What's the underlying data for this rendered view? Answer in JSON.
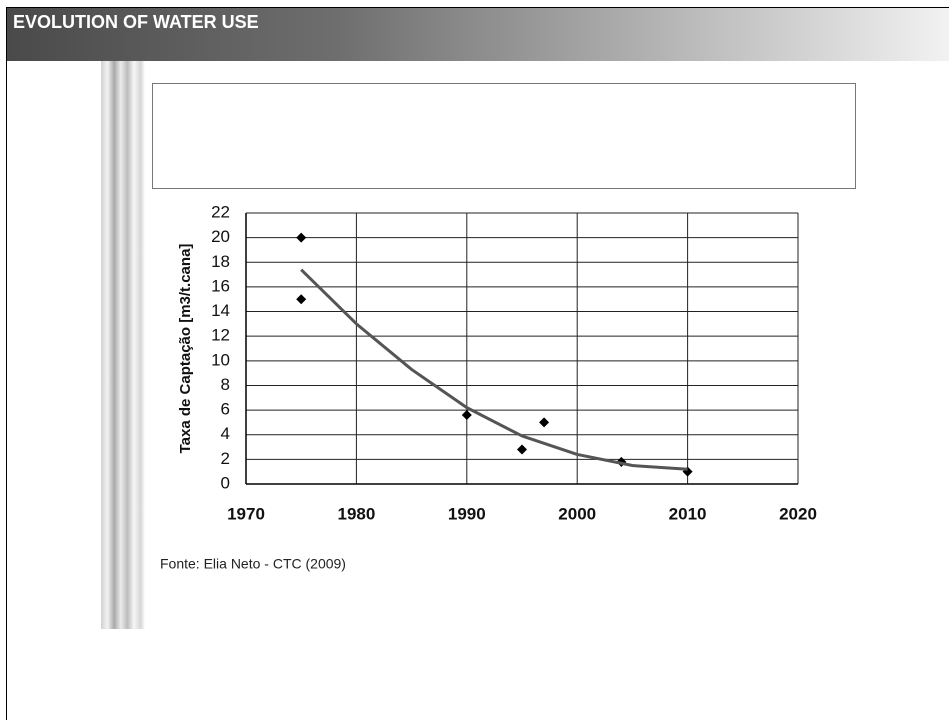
{
  "header": {
    "title": "EVOLUTION OF WATER USE"
  },
  "chart_data": {
    "type": "scatter",
    "y_label": "Taxa de Captação [m3/t.cana]",
    "xlim": [
      1970,
      2020
    ],
    "xticks": [
      1970,
      1980,
      1990,
      2000,
      2010,
      2020
    ],
    "ylim": [
      0,
      22
    ],
    "yticks": [
      0,
      2,
      4,
      6,
      8,
      10,
      12,
      14,
      16,
      18,
      20,
      22
    ],
    "grid": true,
    "series": [
      {
        "type": "scatter",
        "color": "#000000",
        "x": [
          1975,
          1975,
          1990,
          1995,
          1997,
          2004,
          2010
        ],
        "values": [
          20,
          15,
          5.6,
          2.8,
          5,
          1.8,
          1
        ]
      },
      {
        "type": "line",
        "color": "#555555",
        "x": [
          1975,
          1980,
          1985,
          1990,
          1995,
          2000,
          2005,
          2010
        ],
        "values": [
          17.4,
          13,
          9.3,
          6.2,
          3.9,
          2.4,
          1.5,
          1.2
        ]
      }
    ]
  },
  "source": "Fonte: Elia Neto - CTC (2009)"
}
